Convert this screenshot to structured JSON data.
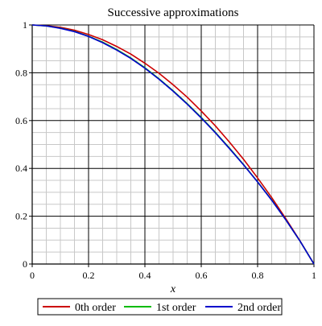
{
  "chart_data": {
    "type": "line",
    "title": "Successive approximations",
    "xlabel": "x",
    "ylabel": "",
    "xlim": [
      0,
      1
    ],
    "ylim": [
      0,
      1
    ],
    "x_ticks": [
      "0",
      "0.2",
      "0.4",
      "0.6",
      "0.8",
      "1"
    ],
    "y_ticks": [
      "0",
      "0.2",
      "0.4",
      "0.6",
      "0.8",
      "1"
    ],
    "grid": true,
    "legend_position": "bottom",
    "x": [
      0,
      0.05,
      0.1,
      0.15,
      0.2,
      0.25,
      0.3,
      0.35,
      0.4,
      0.45,
      0.5,
      0.55,
      0.6,
      0.65,
      0.7,
      0.75,
      0.8,
      0.85,
      0.9,
      0.95,
      1
    ],
    "series": [
      {
        "name": "0th order",
        "color": "#cc0000",
        "values": [
          1.0,
          0.997,
          0.99,
          0.978,
          0.96,
          0.938,
          0.91,
          0.878,
          0.84,
          0.798,
          0.75,
          0.698,
          0.64,
          0.578,
          0.51,
          0.438,
          0.36,
          0.278,
          0.19,
          0.098,
          0.0
        ]
      },
      {
        "name": "1st order",
        "color": "#00bb00",
        "values": [
          1.0,
          0.996,
          0.987,
          0.973,
          0.953,
          0.928,
          0.897,
          0.862,
          0.821,
          0.775,
          0.725,
          0.671,
          0.613,
          0.551,
          0.485,
          0.416,
          0.344,
          0.268,
          0.185,
          0.097,
          0.0
        ]
      },
      {
        "name": "2nd order",
        "color": "#0000cc",
        "values": [
          1.0,
          0.996,
          0.986,
          0.972,
          0.952,
          0.926,
          0.895,
          0.86,
          0.819,
          0.773,
          0.723,
          0.669,
          0.611,
          0.549,
          0.483,
          0.415,
          0.343,
          0.267,
          0.185,
          0.097,
          0.0
        ]
      }
    ]
  }
}
